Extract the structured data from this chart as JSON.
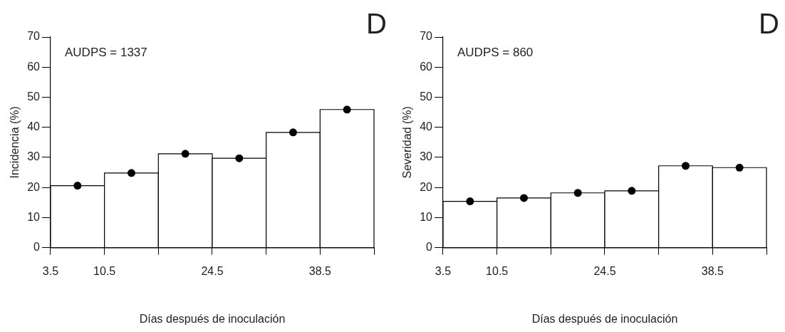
{
  "chart_data": [
    {
      "type": "histogram",
      "xlabel": "Días después de inoculación",
      "ylabel": "Incidencia (%)",
      "annotations": [
        "AUDPS = 1337",
        "D"
      ],
      "xlim": [
        3.5,
        45.5
      ],
      "xticks": [
        3.5,
        10.5,
        {
          "value": 17.5,
          "label": null
        },
        24.5,
        {
          "value": 31.5,
          "label": null
        },
        38.5,
        {
          "value": 45.5,
          "label": null
        }
      ],
      "ylim": [
        0,
        70
      ],
      "yticks": [
        0,
        10,
        20,
        30,
        40,
        50,
        60,
        70
      ],
      "grid": false,
      "legend": false,
      "marker": "circle",
      "series": [
        {
          "color": "#ffffff",
          "bins": [
            3.5,
            10.5,
            17.5,
            24.5,
            31.5,
            38.5,
            45.5
          ],
          "values": [
            20.6,
            24.8,
            31.2,
            29.7,
            38.3,
            45.9
          ]
        },
        {
          "type": "scatter",
          "color": "#000000",
          "x": [
            7,
            14,
            21,
            28,
            35,
            42
          ],
          "values": [
            20.6,
            24.8,
            31.2,
            29.7,
            38.3,
            45.9
          ]
        }
      ]
    },
    {
      "type": "histogram",
      "xlabel": "Días después de inoculación",
      "ylabel": "Severidad (%)",
      "annotations": [
        "AUDPS = 860",
        "D"
      ],
      "xlim": [
        3.5,
        45.5
      ],
      "xticks": [
        3.5,
        10.5,
        {
          "value": 17.5,
          "label": null
        },
        24.5,
        {
          "value": 31.5,
          "label": null
        },
        38.5,
        {
          "value": 45.5,
          "label": null
        }
      ],
      "ylim": [
        0,
        70
      ],
      "yticks": [
        0,
        10,
        20,
        30,
        40,
        50,
        60,
        70
      ],
      "grid": false,
      "legend": false,
      "marker": "circle",
      "series": [
        {
          "color": "#ffffff",
          "bins": [
            3.5,
            10.5,
            17.5,
            24.5,
            31.5,
            38.5,
            45.5
          ],
          "values": [
            15.4,
            16.5,
            18.2,
            18.9,
            27.2,
            26.6
          ]
        },
        {
          "type": "scatter",
          "color": "#000000",
          "x": [
            7,
            14,
            21,
            28,
            35,
            42
          ],
          "values": [
            15.4,
            16.5,
            18.2,
            18.9,
            27.2,
            26.6
          ]
        }
      ]
    }
  ]
}
